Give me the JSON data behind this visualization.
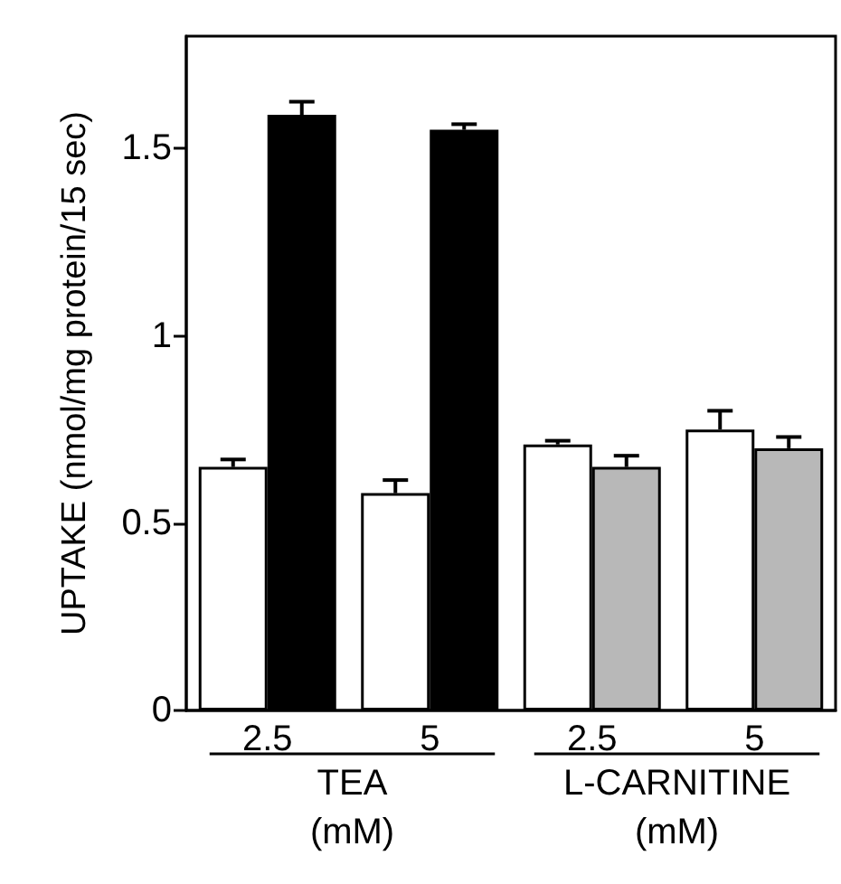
{
  "chart_data": {
    "type": "bar",
    "ylabel": "UPTAKE (nmol/mg protein/15 sec)",
    "categories": [
      "2.5",
      "5",
      "2.5",
      "5"
    ],
    "series": [
      {
        "color": "#ffffff",
        "values": [
          0.65,
          0.58,
          0.71,
          0.75
        ],
        "errors": [
          [
            0.65,
            0.67
          ],
          [
            0.58,
            0.615
          ],
          [
            0.71,
            0.72
          ],
          [
            0.75,
            0.8
          ]
        ]
      },
      {
        "color": "#000000",
        "colors": [
          "#000000",
          "#000000",
          "#b8b8b8",
          "#b8b8b8"
        ],
        "values": [
          1.59,
          1.55,
          0.65,
          0.7
        ],
        "errors": [
          [
            1.59,
            1.625
          ],
          [
            1.55,
            1.565
          ],
          [
            0.65,
            0.68
          ],
          [
            0.7,
            0.73
          ]
        ]
      }
    ],
    "annotations": [
      "TEA\n(mM)",
      "L-CARNITINE\n(mM)"
    ],
    "ylim": [
      0,
      1.8
    ],
    "yticks": [
      0,
      0.5,
      1,
      1.5
    ],
    "grid": false
  }
}
